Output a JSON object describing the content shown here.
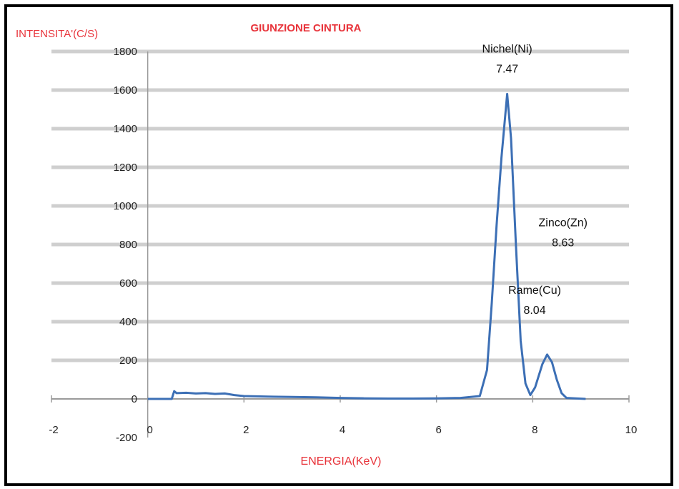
{
  "chart_data": {
    "type": "line",
    "title": "GIUNZIONE CINTURA",
    "ylabel": "INTENSITA'(C/S)",
    "xlabel": "ENERGIA(KeV)",
    "xlim": [
      -2,
      10
    ],
    "ylim": [
      -200,
      1800
    ],
    "xticks": [
      -2,
      0,
      2,
      4,
      6,
      8,
      10
    ],
    "yticks": [
      -200,
      0,
      200,
      400,
      600,
      800,
      1000,
      1200,
      1400,
      1600,
      1800
    ],
    "grid": true,
    "series": [
      {
        "color": "#3c6fb5",
        "x": [
          0.0,
          0.5,
          0.55,
          0.6,
          0.8,
          1.0,
          1.2,
          1.4,
          1.6,
          1.8,
          2.0,
          2.5,
          3.0,
          3.5,
          4.0,
          4.5,
          5.0,
          5.5,
          6.0,
          6.5,
          6.9,
          7.05,
          7.15,
          7.25,
          7.35,
          7.47,
          7.55,
          7.65,
          7.75,
          7.85,
          7.95,
          8.05,
          8.2,
          8.3,
          8.4,
          8.5,
          8.6,
          8.7,
          9.1
        ],
        "y": [
          0,
          0,
          40,
          30,
          32,
          28,
          30,
          26,
          28,
          20,
          15,
          12,
          10,
          8,
          5,
          3,
          2,
          2,
          3,
          5,
          15,
          150,
          500,
          900,
          1250,
          1580,
          1350,
          800,
          300,
          80,
          20,
          60,
          180,
          230,
          190,
          100,
          30,
          5,
          0
        ]
      }
    ],
    "annotations": [
      {
        "name": "Nichel(Ni)",
        "value": "7.47",
        "x": 7.47,
        "y": 1580
      },
      {
        "name": "Zinco(Zn)",
        "value": "8.63",
        "x": 8.63,
        "y": 680
      },
      {
        "name": "Rame(Cu)",
        "value": "8.04",
        "x": 8.04,
        "y": 330
      }
    ]
  }
}
